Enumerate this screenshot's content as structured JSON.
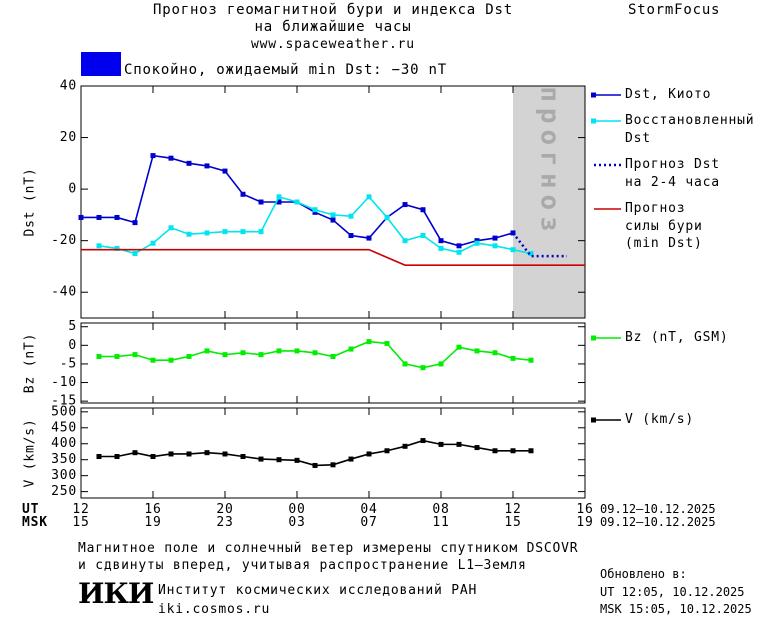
{
  "header": {
    "title": "Прогноз геомагнитной бури и индекса Dst",
    "subtitle": "на ближайшие часы",
    "url": "www.spaceweather.ru",
    "brand": "StormFocus",
    "status_color": "#0000ee",
    "status": "Спокойно, ожидаемый min Dst: −30 nT"
  },
  "time_axis": {
    "xlim": [
      0,
      28
    ],
    "ut_label": "UT",
    "msk_label": "MSK",
    "ut_dates": "09.12–10.12.2025",
    "msk_dates": "09.12–10.12.2025",
    "ut_ticks": [
      {
        "value": 0,
        "label": "12"
      },
      {
        "value": 4,
        "label": "16"
      },
      {
        "value": 8,
        "label": "20"
      },
      {
        "value": 12,
        "label": "00"
      },
      {
        "value": 16,
        "label": "04"
      },
      {
        "value": 20,
        "label": "08"
      },
      {
        "value": 24,
        "label": "12"
      },
      {
        "value": 28,
        "label": "16"
      }
    ],
    "msk_ticks": [
      {
        "value": 0,
        "label": "15"
      },
      {
        "value": 4,
        "label": "19"
      },
      {
        "value": 8,
        "label": "23"
      },
      {
        "value": 12,
        "label": "03"
      },
      {
        "value": 16,
        "label": "07"
      },
      {
        "value": 20,
        "label": "11"
      },
      {
        "value": 24,
        "label": "15"
      },
      {
        "value": 28,
        "label": "19"
      }
    ]
  },
  "chart_data": [
    {
      "type": "line",
      "ylabel": "Dst (nT)",
      "ylim": [
        -50,
        40
      ],
      "yticks": [
        40,
        20,
        0,
        -20,
        -40
      ],
      "forecast_band": [
        24,
        28
      ],
      "forecast_label": "прогноз",
      "series": [
        {
          "name": "Dst, Киото",
          "color": "#0000cc",
          "marker": "square",
          "style": "solid",
          "x": [
            0,
            1,
            2,
            3,
            4,
            5,
            6,
            7,
            8,
            9,
            10,
            11,
            12,
            13,
            14,
            15,
            16,
            17,
            18,
            19,
            20,
            21,
            22,
            23,
            24
          ],
          "values": [
            -11,
            -11,
            -11,
            -13,
            13,
            12,
            10,
            9,
            7,
            -2,
            -5,
            -5,
            -5,
            -9,
            -12,
            -18,
            -19,
            -11,
            -6,
            -8,
            -20,
            -22,
            -20,
            -19,
            -17
          ]
        },
        {
          "name": "Восстановленный\nDst",
          "color": "#00e5ee",
          "marker": "square",
          "style": "solid",
          "x": [
            1,
            2,
            3,
            4,
            5,
            6,
            7,
            8,
            9,
            10,
            11,
            12,
            13,
            14,
            15,
            16,
            17,
            18,
            19,
            20,
            21,
            22,
            23,
            24,
            25
          ],
          "values": [
            -22,
            -23,
            -25,
            -21,
            -15,
            -17.5,
            -17,
            -16.5,
            -16.5,
            -16.5,
            -3,
            -5,
            -8,
            -10,
            -10.5,
            -3,
            -11,
            -20,
            -18,
            -23,
            -24.5,
            -21,
            -22,
            -23.5,
            -25
          ]
        },
        {
          "name": "Прогноз Dst\nна 2-4 часа",
          "color": "#0000cc",
          "style": "dotted",
          "x": [
            24,
            25,
            26,
            27
          ],
          "values": [
            -17,
            -26,
            -26,
            -26
          ]
        },
        {
          "name": "Прогноз\nсилы бури\n(min Dst)",
          "color": "#cc0000",
          "style": "solid",
          "x": [
            0,
            16,
            18,
            28
          ],
          "values": [
            -23.5,
            -23.5,
            -29.5,
            -29.5
          ]
        }
      ]
    },
    {
      "type": "line",
      "ylabel": "Bz (nT)",
      "ylim": [
        -15.5,
        6
      ],
      "yticks": [
        5,
        0,
        -5,
        -10,
        -15
      ],
      "series": [
        {
          "name": "Bz (nT, GSM)",
          "color": "#00ee00",
          "marker": "square",
          "style": "solid",
          "x": [
            1,
            2,
            3,
            4,
            5,
            6,
            7,
            8,
            9,
            10,
            11,
            12,
            13,
            14,
            15,
            16,
            17,
            18,
            19,
            20,
            21,
            22,
            23,
            24,
            25
          ],
          "values": [
            -3,
            -3,
            -2.5,
            -4,
            -4,
            -3,
            -1.5,
            -2.5,
            -2,
            -2.5,
            -1.5,
            -1.5,
            -2,
            -3,
            -1,
            1,
            0.5,
            -5,
            -6,
            -5,
            -0.5,
            -1.5,
            -2,
            -3.5,
            -4
          ]
        }
      ]
    },
    {
      "type": "line",
      "ylabel": "V (km/s)",
      "ylim": [
        230,
        512
      ],
      "yticks": [
        500,
        450,
        400,
        350,
        300,
        250
      ],
      "series": [
        {
          "name": "V (km/s)",
          "color": "#000000",
          "marker": "square",
          "style": "solid",
          "x": [
            1,
            2,
            3,
            4,
            5,
            6,
            7,
            8,
            9,
            10,
            11,
            12,
            13,
            14,
            15,
            16,
            17,
            18,
            19,
            20,
            21,
            22,
            23,
            24,
            25
          ],
          "values": [
            360,
            360,
            372,
            360,
            368,
            368,
            372,
            368,
            360,
            352,
            350,
            348,
            332,
            334,
            352,
            368,
            378,
            392,
            410,
            398,
            398,
            388,
            378,
            378,
            378
          ]
        }
      ]
    }
  ],
  "footer": {
    "note1": "Магнитное поле и солнечный ветер измерены спутником DSCOVR",
    "note2": "и сдвинуты вперед, учитывая распространение L1–Земля",
    "logo": "ИКИ",
    "institute": "Институт космических исследований РАН",
    "site": "iki.cosmos.ru",
    "updated": "Обновлено в:",
    "updated_ut": "UT  12:05, 10.12.2025",
    "updated_msk": "MSK 15:05, 10.12.2025"
  }
}
